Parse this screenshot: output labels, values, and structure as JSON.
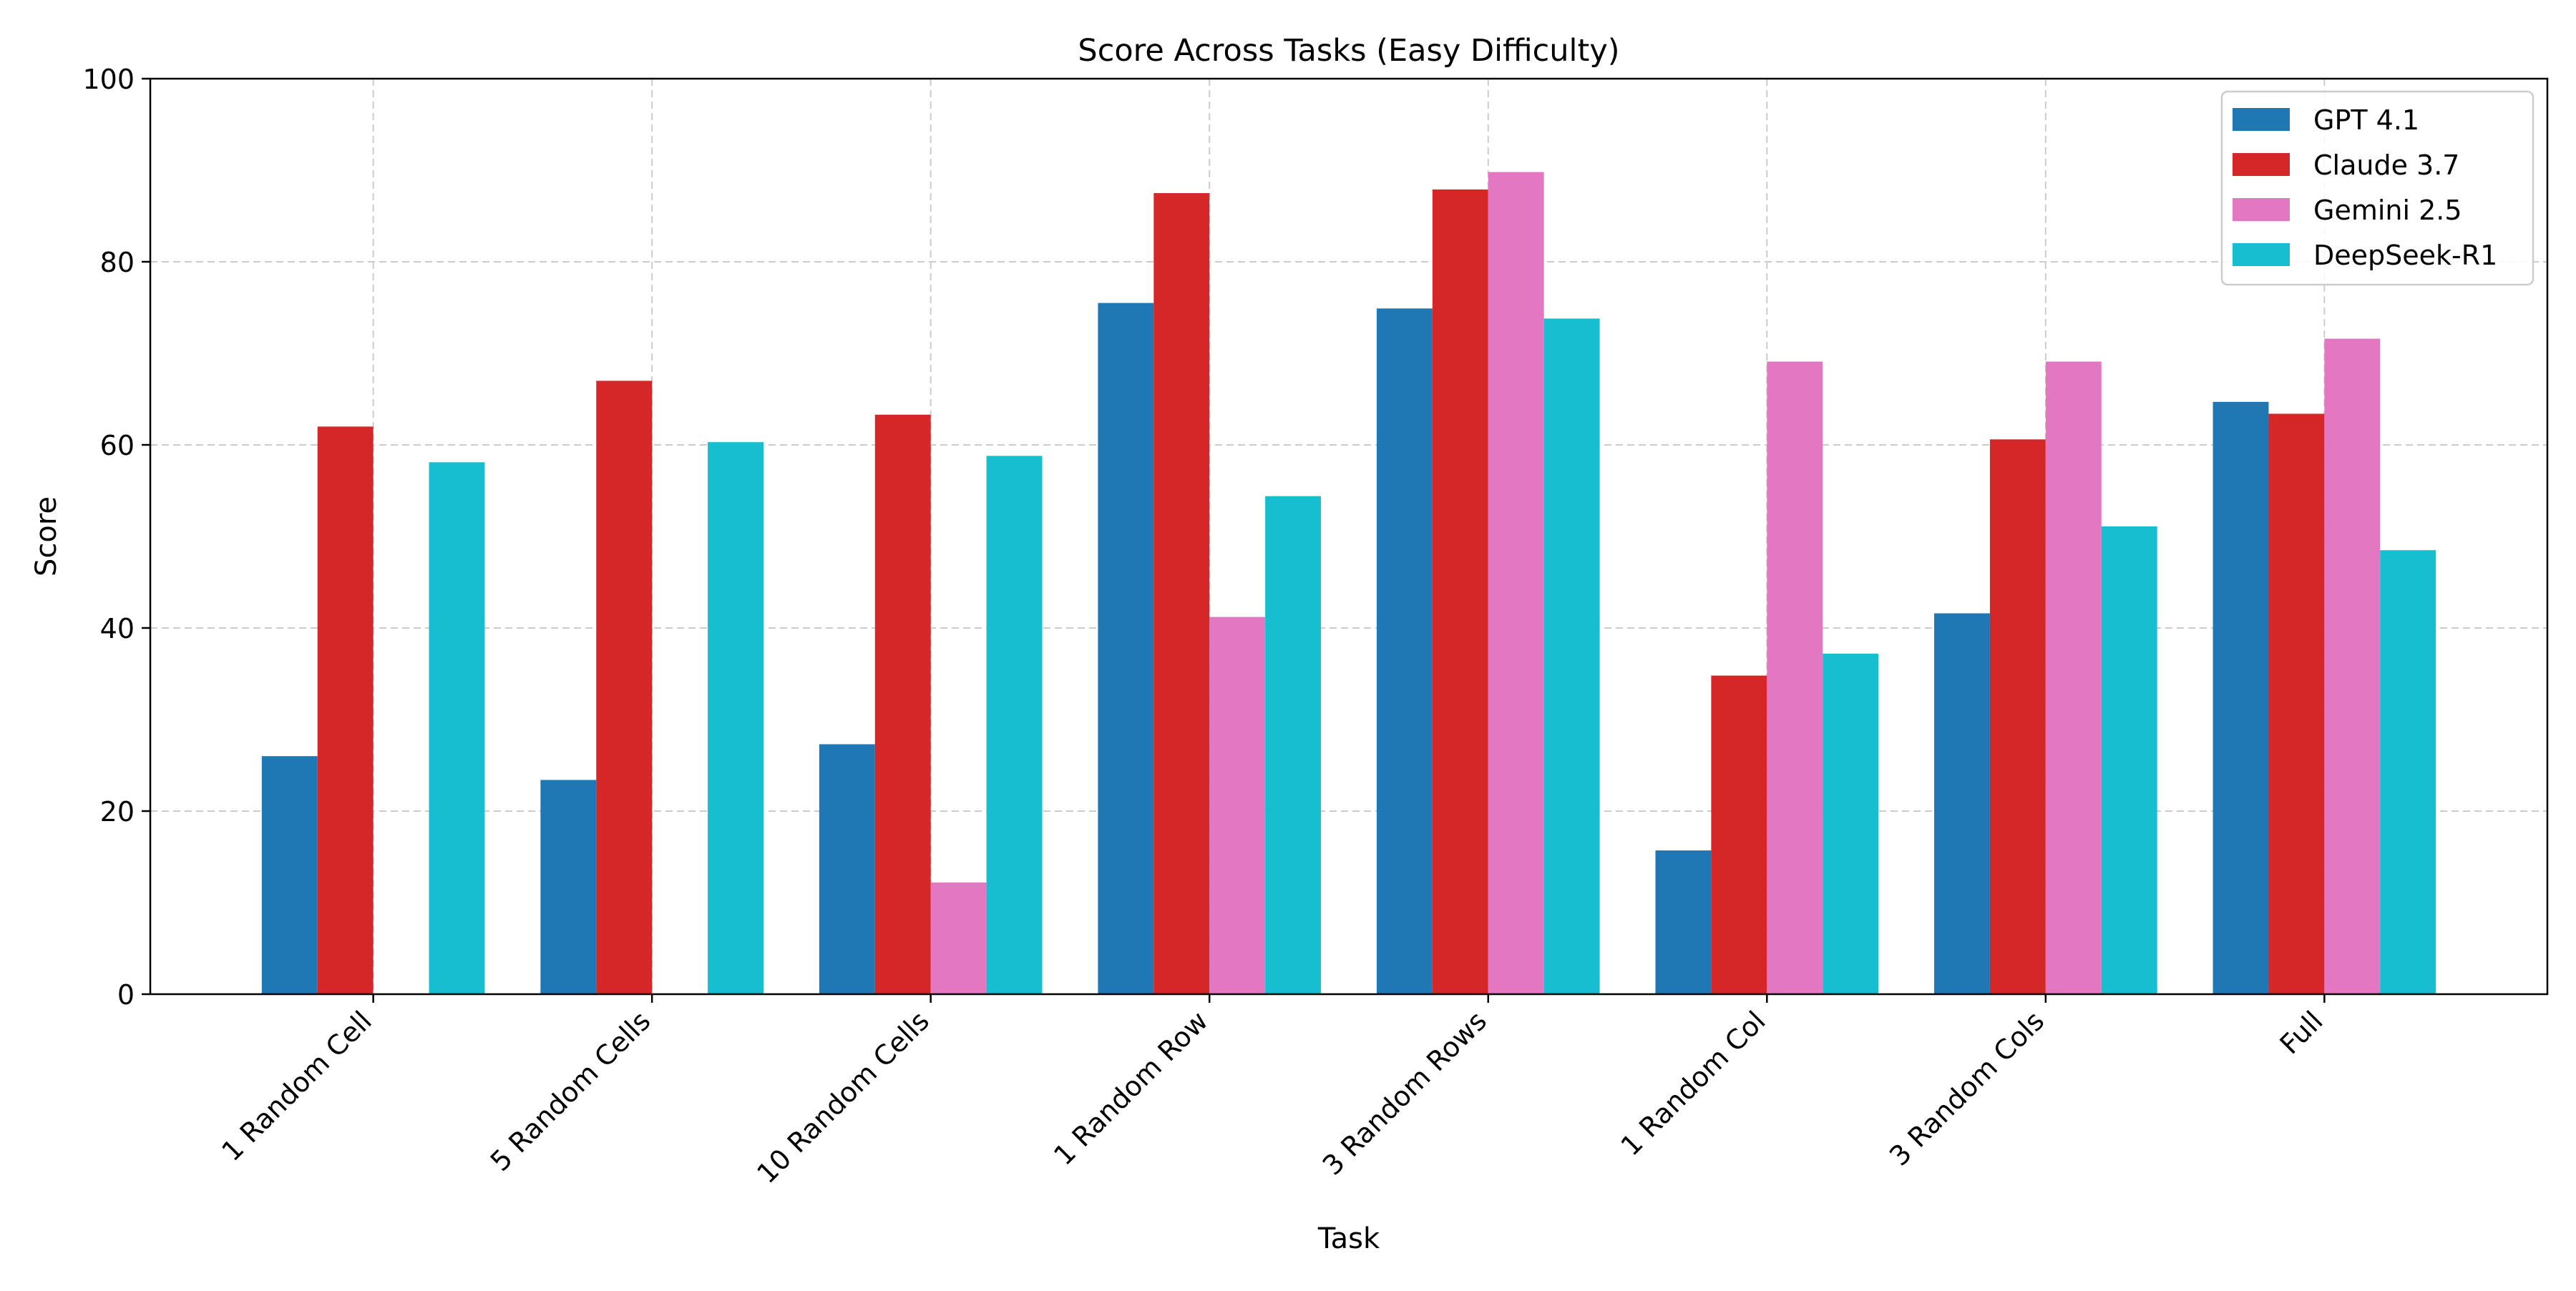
{
  "chart_data": {
    "type": "bar",
    "title": "Score Across Tasks (Easy Difficulty)",
    "xlabel": "Task",
    "ylabel": "Score",
    "ylim": [
      0,
      100
    ],
    "yticks": [
      0,
      20,
      40,
      60,
      80,
      100
    ],
    "grid": true,
    "legend_position": "top-right",
    "categories": [
      "1 Random Cell",
      "5 Random Cells",
      "10 Random Cells",
      "1 Random Row",
      "3 Random Rows",
      "1 Random Col",
      "3 Random Cols",
      "Full"
    ],
    "series": [
      {
        "name": "GPT 4.1",
        "color": "#1f77b4",
        "values": [
          26.0,
          23.4,
          27.3,
          75.5,
          74.9,
          15.7,
          41.6,
          64.7
        ]
      },
      {
        "name": "Claude 3.7",
        "color": "#d62728",
        "values": [
          62.0,
          67.0,
          63.3,
          87.5,
          87.9,
          34.8,
          60.6,
          63.4
        ]
      },
      {
        "name": "Gemini 2.5",
        "color": "#e377c2",
        "values": [
          0,
          0,
          12.2,
          41.2,
          89.8,
          69.1,
          69.1,
          71.6
        ]
      },
      {
        "name": "DeepSeek-R1",
        "color": "#17becf",
        "values": [
          58.1,
          60.3,
          58.8,
          54.4,
          73.8,
          37.2,
          51.1,
          48.5
        ]
      }
    ]
  }
}
